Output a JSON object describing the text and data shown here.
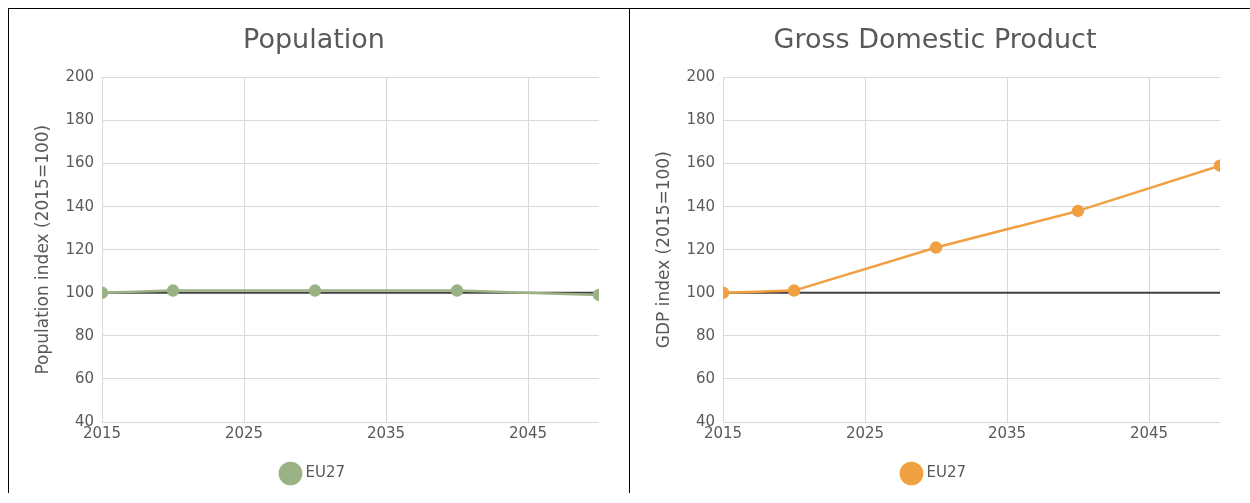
{
  "chart_data": [
    {
      "type": "line",
      "title": "Population",
      "ylabel": "Population index (2015=100)",
      "x": [
        2015,
        2020,
        2030,
        2040,
        2050
      ],
      "series": [
        {
          "name": "EU27",
          "color": "#9bb285",
          "values": [
            100,
            101,
            101,
            101,
            99
          ]
        }
      ],
      "xlim": [
        2015,
        2050
      ],
      "xticks": [
        2015,
        2025,
        2035,
        2045
      ],
      "ylim": [
        40,
        200
      ],
      "yticks": [
        40,
        60,
        80,
        100,
        120,
        140,
        160,
        180,
        200
      ],
      "grid": true,
      "legend": "bottom",
      "marker": "circle",
      "line_style": "solid",
      "ref_lines": [
        {
          "axis": "y",
          "value": 100,
          "color": "#404040"
        }
      ]
    },
    {
      "type": "line",
      "title": "Gross Domestic Product",
      "ylabel": "GDP index (2015=100)",
      "x": [
        2015,
        2020,
        2030,
        2040,
        2050
      ],
      "series": [
        {
          "name": "EU27",
          "color": "#f0a040",
          "values": [
            100,
            101,
            121,
            138,
            159
          ]
        }
      ],
      "xlim": [
        2015,
        2050
      ],
      "xticks": [
        2015,
        2025,
        2035,
        2045
      ],
      "ylim": [
        40,
        200
      ],
      "yticks": [
        40,
        60,
        80,
        100,
        120,
        140,
        160,
        180,
        200
      ],
      "grid": true,
      "legend": "bottom",
      "marker": "circle",
      "line_style": "solid",
      "ref_lines": [
        {
          "axis": "y",
          "value": 100,
          "color": "#404040"
        }
      ]
    }
  ]
}
